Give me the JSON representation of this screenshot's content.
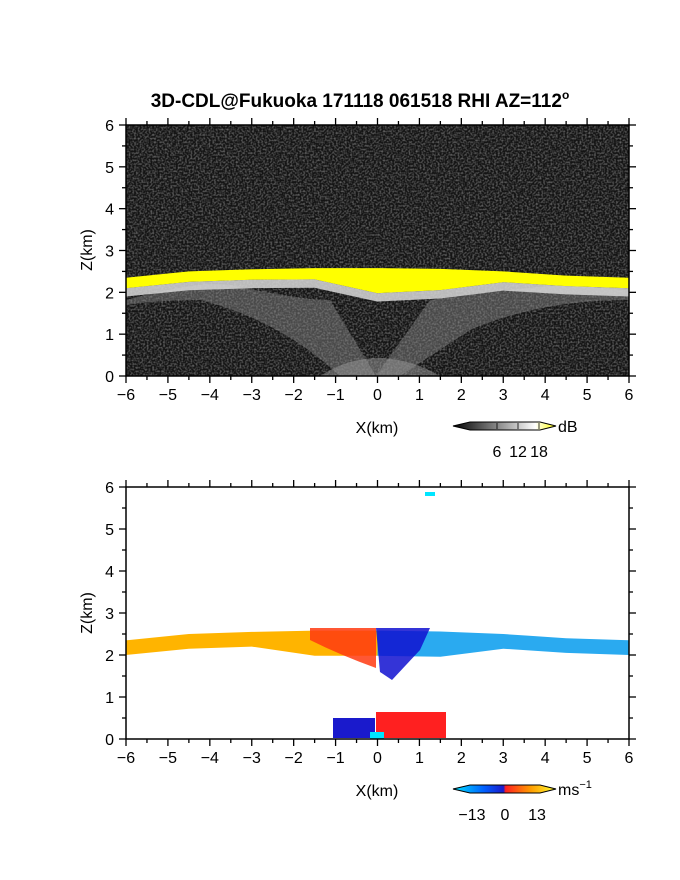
{
  "figure": {
    "title_main": "3D-CDL@Fukuoka 171118 061518 RHI AZ=112",
    "title_deg": "o"
  },
  "chart_data": [
    {
      "type": "heatmap",
      "name": "backscatter",
      "xlabel": "X(km)",
      "ylabel": "Z(km)",
      "xlim": [
        -6,
        6
      ],
      "ylim": [
        0,
        6
      ],
      "xticks": [
        -6,
        -5,
        -4,
        -3,
        -2,
        -1,
        0,
        1,
        2,
        3,
        4,
        5,
        6
      ],
      "yticks": [
        0,
        1,
        2,
        3,
        4,
        5,
        6
      ],
      "colorbar": {
        "unit": "dB",
        "ticks": [
          6,
          12,
          18
        ],
        "range": [
          0,
          20
        ],
        "colors": [
          "#000000",
          "#ffffff",
          "#ffff00"
        ]
      },
      "layer": {
        "top_km": [
          2.35,
          2.5,
          2.55,
          2.58,
          2.58,
          2.56,
          2.5,
          2.4,
          2.35
        ],
        "x_km": [
          -6,
          -4.5,
          -3,
          -1.5,
          0,
          1.5,
          3,
          4.5,
          6
        ]
      }
    },
    {
      "type": "heatmap",
      "name": "doppler-velocity",
      "xlabel": "X(km)",
      "ylabel": "Z(km)",
      "xlim": [
        -6,
        6
      ],
      "ylim": [
        0,
        6
      ],
      "xticks": [
        -6,
        -5,
        -4,
        -3,
        -2,
        -1,
        0,
        1,
        2,
        3,
        4,
        5,
        6
      ],
      "yticks": [
        0,
        1,
        2,
        3,
        4,
        5,
        6
      ],
      "colorbar": {
        "unit": "ms",
        "unit_exp": "−1",
        "ticks": [
          "−13",
          "0",
          "13"
        ],
        "range": [
          -15,
          15
        ],
        "colors": [
          "#00e5ff",
          "#0050ff",
          "#1f1fd0",
          "#ff2020",
          "#ff9a00",
          "#ffff33"
        ]
      }
    }
  ]
}
